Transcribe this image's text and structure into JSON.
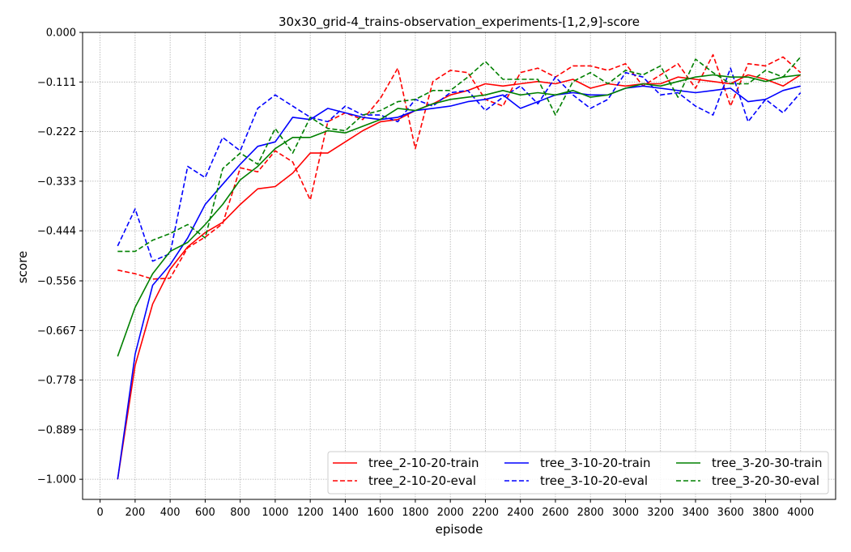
{
  "chart_data": {
    "type": "line",
    "title": "30x30_grid-4_trains-observation_experiments-[1,2,9]-score",
    "xlabel": "episode",
    "ylabel": "score",
    "xlim": [
      -100,
      4200
    ],
    "ylim": [
      -1.045,
      0.0
    ],
    "x_ticks": [
      0,
      200,
      400,
      600,
      800,
      1000,
      1200,
      1400,
      1600,
      1800,
      2000,
      2200,
      2400,
      2600,
      2800,
      3000,
      3200,
      3400,
      3600,
      3800,
      4000
    ],
    "y_ticks": [
      0.0,
      -0.111,
      -0.222,
      -0.333,
      -0.444,
      -0.556,
      -0.667,
      -0.778,
      -0.889,
      -1.0
    ],
    "y_tick_labels": [
      "0.000",
      "−0.111",
      "−0.222",
      "−0.333",
      "−0.444",
      "−0.556",
      "−0.667",
      "−0.778",
      "−0.889",
      "−1.000"
    ],
    "grid": true,
    "legend_position": "lower-right",
    "legend_columns": 3,
    "x": [
      100,
      200,
      300,
      400,
      500,
      600,
      700,
      800,
      900,
      1000,
      1100,
      1200,
      1300,
      1400,
      1500,
      1600,
      1700,
      1800,
      1900,
      2000,
      2100,
      2200,
      2300,
      2400,
      2500,
      2600,
      2700,
      2800,
      2900,
      3000,
      3100,
      3200,
      3300,
      3400,
      3500,
      3600,
      3700,
      3800,
      3900,
      4000
    ],
    "series": [
      {
        "name": "tree_2-10-20-train",
        "color": "#ff0000",
        "dash": "solid",
        "values": [
          -1.0,
          -0.745,
          -0.608,
          -0.53,
          -0.48,
          -0.448,
          -0.425,
          -0.385,
          -0.35,
          -0.345,
          -0.315,
          -0.27,
          -0.27,
          -0.245,
          -0.22,
          -0.2,
          -0.195,
          -0.175,
          -0.16,
          -0.14,
          -0.13,
          -0.115,
          -0.12,
          -0.115,
          -0.11,
          -0.115,
          -0.105,
          -0.125,
          -0.115,
          -0.12,
          -0.115,
          -0.115,
          -0.1,
          -0.105,
          -0.11,
          -0.115,
          -0.095,
          -0.105,
          -0.12,
          -0.095
        ]
      },
      {
        "name": "tree_2-10-20-eval",
        "color": "#ff0000",
        "dash": "dashed",
        "values": [
          -0.532,
          -0.54,
          -0.552,
          -0.55,
          -0.482,
          -0.458,
          -0.428,
          -0.303,
          -0.312,
          -0.265,
          -0.29,
          -0.375,
          -0.2,
          -0.18,
          -0.195,
          -0.148,
          -0.08,
          -0.26,
          -0.11,
          -0.085,
          -0.09,
          -0.15,
          -0.165,
          -0.09,
          -0.08,
          -0.1,
          -0.075,
          -0.075,
          -0.085,
          -0.07,
          -0.12,
          -0.095,
          -0.07,
          -0.125,
          -0.05,
          -0.165,
          -0.07,
          -0.075,
          -0.055,
          -0.09
        ]
      },
      {
        "name": "tree_3-10-20-train",
        "color": "#0000ff",
        "dash": "solid",
        "values": [
          -1.0,
          -0.72,
          -0.566,
          -0.52,
          -0.46,
          -0.385,
          -0.34,
          -0.295,
          -0.255,
          -0.245,
          -0.19,
          -0.195,
          -0.17,
          -0.18,
          -0.19,
          -0.195,
          -0.19,
          -0.175,
          -0.17,
          -0.165,
          -0.155,
          -0.15,
          -0.14,
          -0.17,
          -0.155,
          -0.14,
          -0.135,
          -0.14,
          -0.14,
          -0.125,
          -0.12,
          -0.125,
          -0.13,
          -0.135,
          -0.13,
          -0.125,
          -0.155,
          -0.15,
          -0.13,
          -0.12
        ]
      },
      {
        "name": "tree_3-10-20-eval",
        "color": "#0000ff",
        "dash": "dashed",
        "values": [
          -0.478,
          -0.395,
          -0.512,
          -0.495,
          -0.3,
          -0.325,
          -0.235,
          -0.265,
          -0.17,
          -0.14,
          -0.165,
          -0.19,
          -0.2,
          -0.165,
          -0.185,
          -0.185,
          -0.2,
          -0.15,
          -0.165,
          -0.135,
          -0.13,
          -0.175,
          -0.145,
          -0.12,
          -0.16,
          -0.1,
          -0.14,
          -0.17,
          -0.15,
          -0.09,
          -0.1,
          -0.14,
          -0.135,
          -0.165,
          -0.185,
          -0.08,
          -0.2,
          -0.15,
          -0.18,
          -0.135
        ]
      },
      {
        "name": "tree_3-20-30-train",
        "color": "#008000",
        "dash": "solid",
        "values": [
          -0.725,
          -0.615,
          -0.54,
          -0.49,
          -0.47,
          -0.43,
          -0.385,
          -0.33,
          -0.3,
          -0.26,
          -0.235,
          -0.235,
          -0.22,
          -0.225,
          -0.21,
          -0.195,
          -0.17,
          -0.175,
          -0.16,
          -0.15,
          -0.145,
          -0.14,
          -0.13,
          -0.14,
          -0.135,
          -0.14,
          -0.13,
          -0.145,
          -0.14,
          -0.125,
          -0.115,
          -0.12,
          -0.11,
          -0.1,
          -0.095,
          -0.1,
          -0.1,
          -0.11,
          -0.1,
          -0.095
        ]
      },
      {
        "name": "tree_3-20-30-eval",
        "color": "#008000",
        "dash": "dashed",
        "values": [
          -0.49,
          -0.49,
          -0.465,
          -0.45,
          -0.43,
          -0.46,
          -0.305,
          -0.27,
          -0.295,
          -0.215,
          -0.27,
          -0.19,
          -0.215,
          -0.22,
          -0.185,
          -0.175,
          -0.155,
          -0.15,
          -0.13,
          -0.13,
          -0.1,
          -0.065,
          -0.105,
          -0.105,
          -0.105,
          -0.185,
          -0.11,
          -0.09,
          -0.115,
          -0.085,
          -0.095,
          -0.075,
          -0.145,
          -0.06,
          -0.09,
          -0.115,
          -0.115,
          -0.085,
          -0.1,
          -0.055
        ]
      }
    ]
  }
}
